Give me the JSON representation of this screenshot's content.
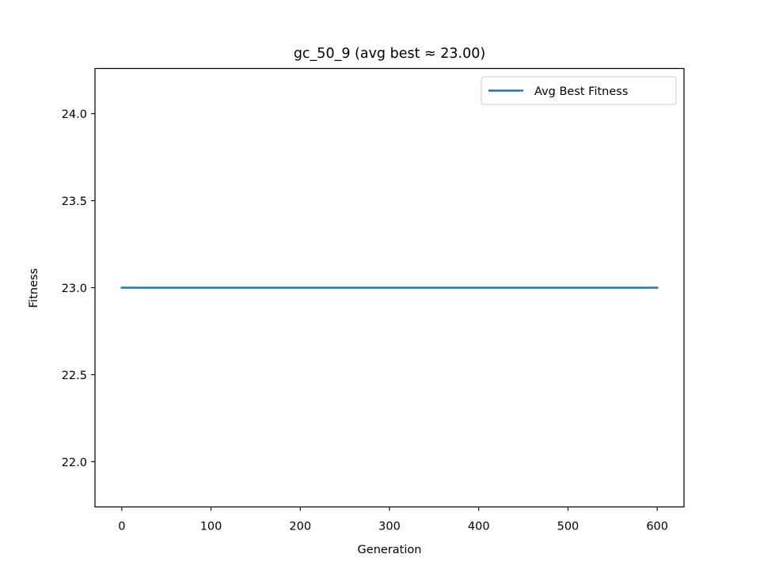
{
  "chart_data": {
    "type": "line",
    "title": "gc_50_9  (avg best ≈ 23.00)",
    "xlabel": "Generation",
    "ylabel": "Fitness",
    "xlim": [
      -30,
      630
    ],
    "ylim": [
      21.74,
      24.26
    ],
    "x_ticks": [
      0,
      100,
      200,
      300,
      400,
      500,
      600
    ],
    "x_tick_labels": [
      "0",
      "100",
      "200",
      "300",
      "400",
      "500",
      "600"
    ],
    "y_ticks": [
      22.0,
      22.5,
      23.0,
      23.5,
      24.0
    ],
    "y_tick_labels": [
      "22.0",
      "22.5",
      "23.0",
      "23.5",
      "24.0"
    ],
    "grid": false,
    "legend_position": "upper right",
    "series": [
      {
        "name": "Avg Best Fitness",
        "color": "#1f77b4",
        "x": [
          0,
          600
        ],
        "y": [
          23.0,
          23.0
        ]
      }
    ]
  }
}
